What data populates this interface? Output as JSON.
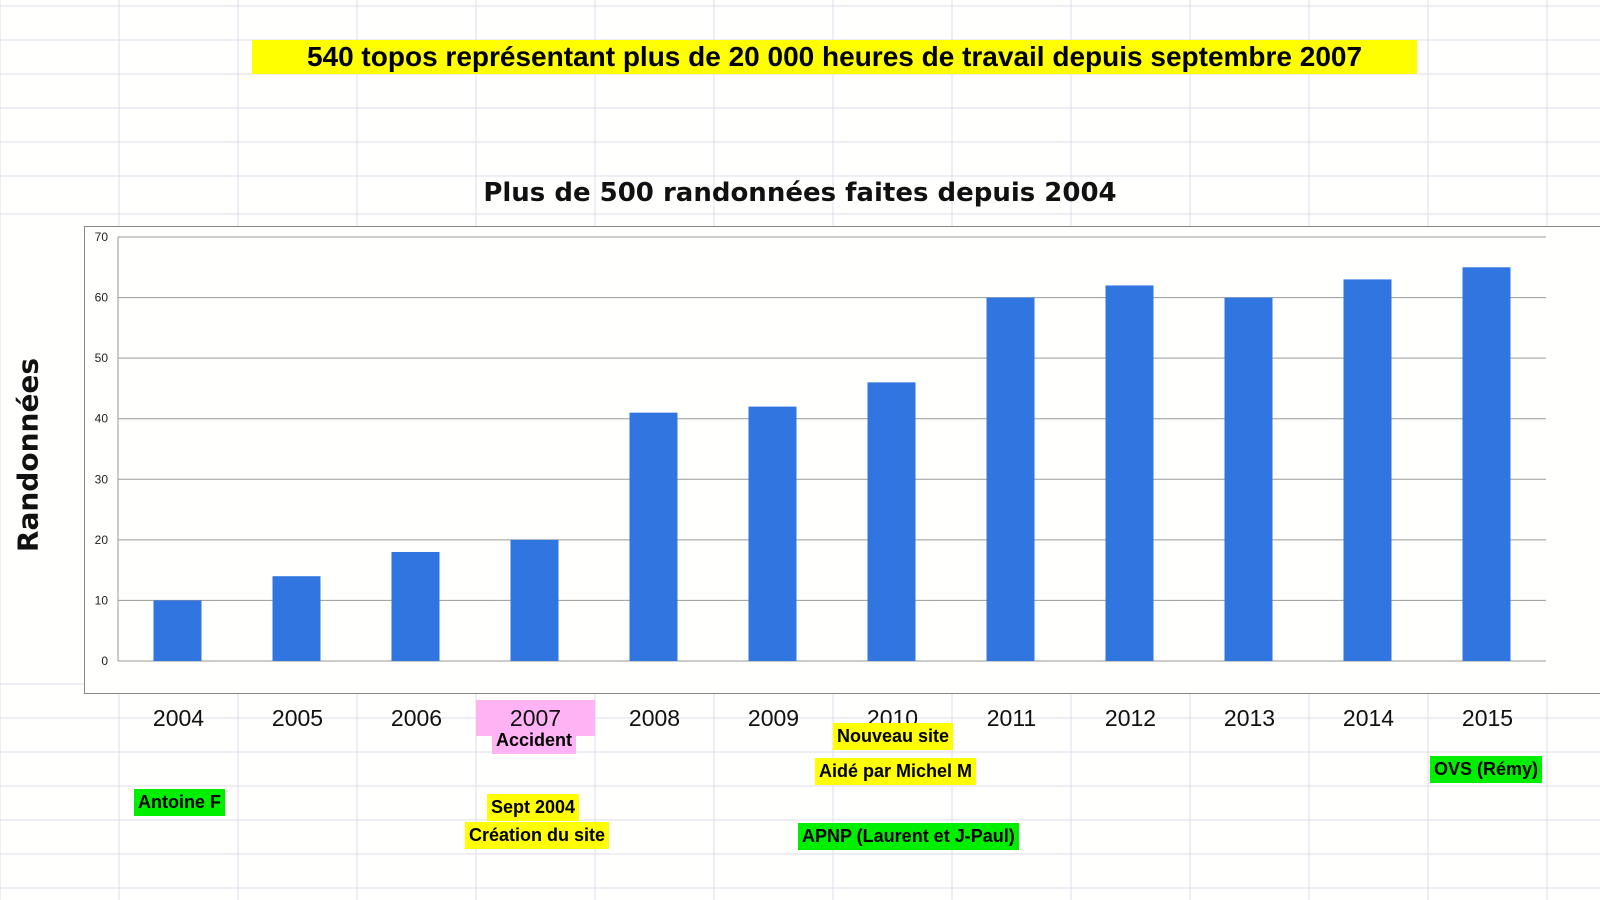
{
  "banner": "540 topos représentant plus de 20 000 heures de travail depuis septembre 2007",
  "colors": {
    "bar": "#3176e0",
    "banner_bg": "#ffff00",
    "highlight_yellow": "#ffff00",
    "highlight_green": "#00ee00",
    "highlight_pink": "#ffb3f5",
    "gridlines": "#9a9a9a"
  },
  "chart_data": {
    "type": "bar",
    "title": "Plus de 500 randonnées faites depuis 2004",
    "xlabel": "",
    "ylabel": "Randonnées",
    "categories": [
      "2004",
      "2005",
      "2006",
      "2007",
      "2008",
      "2009",
      "2010",
      "2011",
      "2012",
      "2013",
      "2014",
      "2015"
    ],
    "values": [
      10,
      14,
      18,
      20,
      41,
      42,
      46,
      60,
      62,
      60,
      63,
      65
    ],
    "ylim": [
      0,
      70
    ],
    "yticks": [
      "0",
      "10",
      "20",
      "30",
      "40",
      "50",
      "60",
      "70"
    ],
    "grid": true,
    "legend": "none",
    "highlighted_category": "2007"
  },
  "annotations": {
    "accident": "Accident",
    "nouveau_site": "Nouveau site",
    "aide_michel": "Aidé par Michel M",
    "ovs_remy": "OVS (Rémy)",
    "antoine": "Antoine F",
    "sept_2004": "Sept 2004",
    "creation_site": "Création du site",
    "apnp": "APNP (Laurent et J-Paul)"
  }
}
